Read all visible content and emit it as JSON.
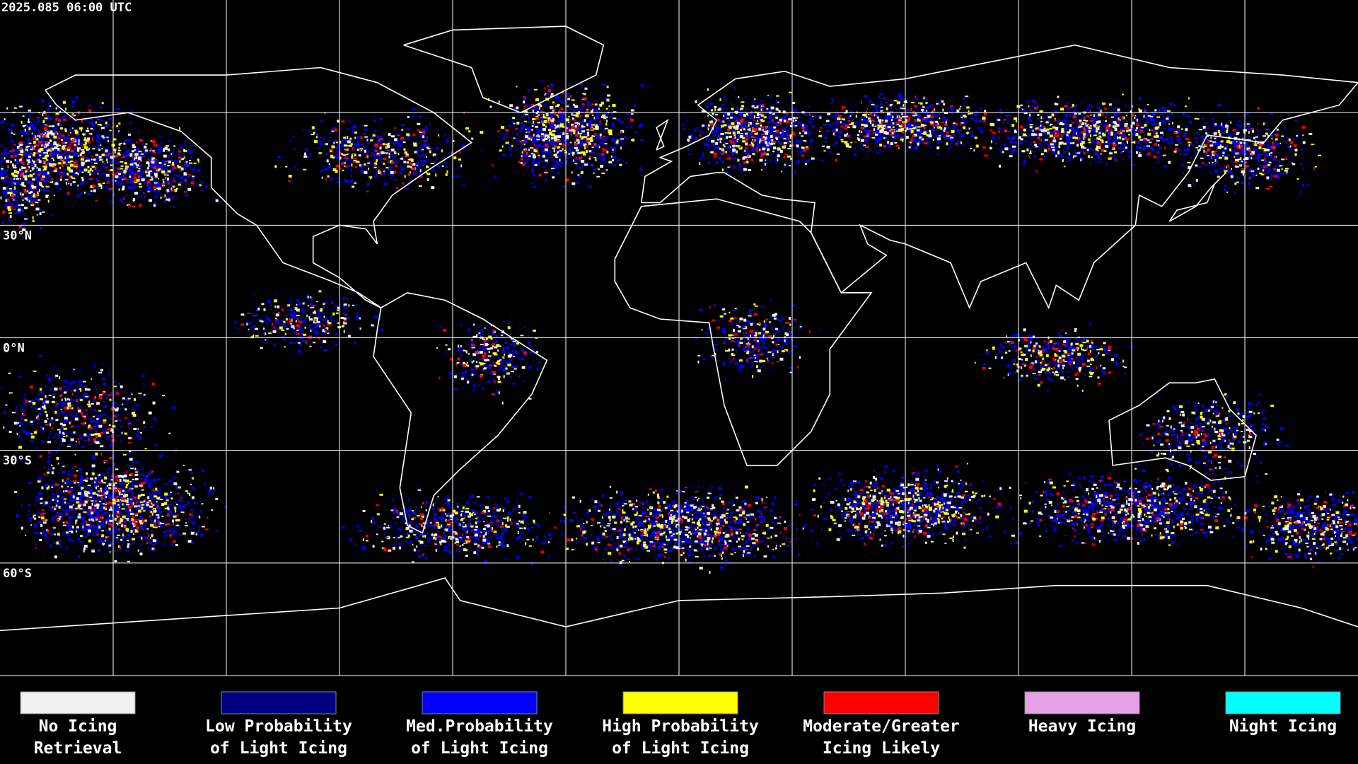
{
  "timestamp": "2025.085 06:00 UTC",
  "latitude_labels": [
    "30°N",
    "0°N",
    "30°S",
    "60°S"
  ],
  "legend": [
    {
      "lines": [
        "No Icing",
        "Retrieval"
      ],
      "color": "#f0f0f0"
    },
    {
      "lines": [
        "Low Probability",
        "of Light Icing"
      ],
      "color": "#000080"
    },
    {
      "lines": [
        "Med.Probability",
        "of Light Icing"
      ],
      "color": "#0000ff"
    },
    {
      "lines": [
        "High Probability",
        "of Light Icing"
      ],
      "color": "#ffff00"
    },
    {
      "lines": [
        "Moderate/Greater",
        "Icing Likely"
      ],
      "color": "#ff0000"
    },
    {
      "lines": [
        "Heavy Icing"
      ],
      "color": "#e6a0e6"
    },
    {
      "lines": [
        "Night Icing"
      ],
      "color": "#00ffff"
    }
  ]
}
